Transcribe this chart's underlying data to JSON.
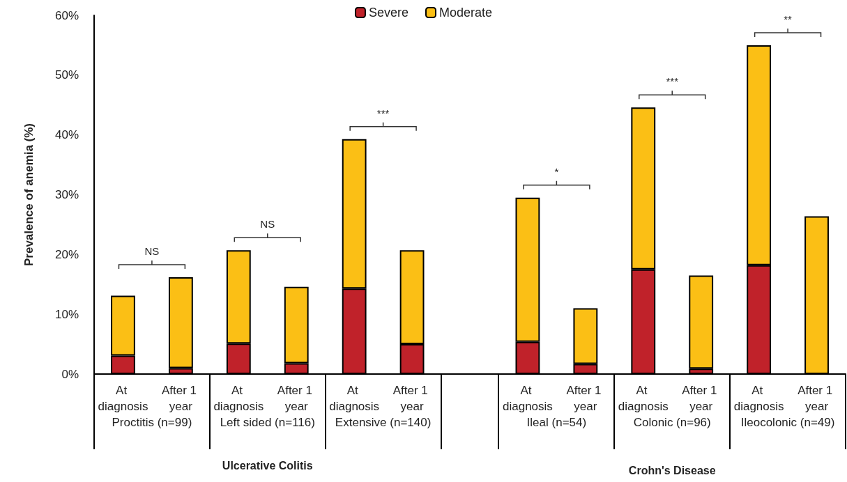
{
  "chart_data": {
    "type": "bar",
    "stacked": true,
    "ylabel": "Prevalence of anemia (%)",
    "categories": [
      "At diagnosis",
      "After 1 year",
      "At diagnosis",
      "After 1 year",
      "At diagnosis",
      "After 1 year",
      null,
      "At diagnosis",
      "After 1 year",
      "At diagnosis",
      "After 1 year",
      "At diagnosis",
      "After 1 year"
    ],
    "series": [
      {
        "name": "Severe",
        "color": "#c0222a",
        "values": [
          3.1,
          1.0,
          5.1,
          1.8,
          14.3,
          5.0,
          null,
          5.4,
          1.7,
          17.5,
          0.9,
          18.2,
          0
        ]
      },
      {
        "name": "Moderate",
        "color": "#fbbf15",
        "values": [
          10.0,
          15.2,
          15.6,
          12.8,
          25.0,
          15.7,
          null,
          24.1,
          9.3,
          27.1,
          15.6,
          36.8,
          26.4
        ]
      }
    ],
    "ylim": [
      0,
      60
    ],
    "yticks": [
      {
        "value": 0,
        "label": "0%"
      },
      {
        "value": 10,
        "label": "10%"
      },
      {
        "value": 20,
        "label": "20%"
      },
      {
        "value": 30,
        "label": "30%"
      },
      {
        "value": 40,
        "label": "40%"
      },
      {
        "value": 50,
        "label": "50%"
      },
      {
        "value": 60,
        "label": "60%"
      }
    ],
    "grid": false,
    "legend": "top",
    "annotations": [
      "Proctitis (n=99)",
      "Left sided (n=116)",
      "Extensive (n=140)",
      "Ileal (n=54)",
      "Colonic (n=96)",
      "Ileocolonic (n=49)",
      "Ulcerative Colitis",
      "Crohn's Disease",
      "NS",
      "NS",
      "***",
      "*",
      "***",
      "**"
    ]
  }
}
